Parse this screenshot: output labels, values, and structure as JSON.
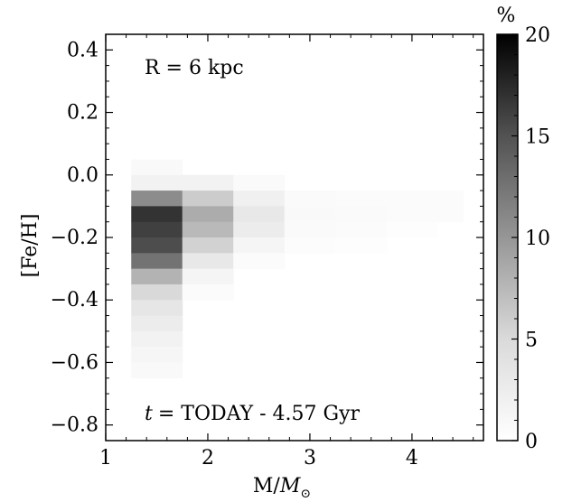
{
  "chart_data": {
    "type": "heatmap",
    "xlabel_main": "M/",
    "xlabel_sub": "⊙",
    "xlabel_sym": "M",
    "ylabel": "[Fe/H]",
    "xlim": [
      1,
      4.7
    ],
    "ylim": [
      -0.85,
      0.45
    ],
    "xticks": [
      1,
      2,
      3,
      4
    ],
    "yticks": [
      0.4,
      0.2,
      0.0,
      -0.2,
      -0.4,
      -0.6,
      -0.8
    ],
    "ytick_labels": [
      "0.4",
      "0.2",
      "0.0",
      "−0.2",
      "−0.4",
      "−0.6",
      "−0.8"
    ],
    "x_bin_edges": [
      1.25,
      1.75,
      2.25,
      2.75,
      3.25,
      3.75,
      4.25,
      4.75
    ],
    "cells": [
      {
        "x0": 1.25,
        "x1": 1.75,
        "y0": 0.0,
        "y1": 0.05,
        "value": 0.5
      },
      {
        "x0": 1.25,
        "x1": 1.75,
        "y0": -0.05,
        "y1": 0.0,
        "value": 1.0
      },
      {
        "x0": 1.25,
        "x1": 1.75,
        "y0": -0.1,
        "y1": -0.05,
        "value": 9.0
      },
      {
        "x0": 1.25,
        "x1": 1.75,
        "y0": -0.15,
        "y1": -0.1,
        "value": 16.0
      },
      {
        "x0": 1.25,
        "x1": 1.75,
        "y0": -0.2,
        "y1": -0.15,
        "value": 15.0
      },
      {
        "x0": 1.25,
        "x1": 1.75,
        "y0": -0.25,
        "y1": -0.2,
        "value": 14.0
      },
      {
        "x0": 1.25,
        "x1": 1.75,
        "y0": -0.3,
        "y1": -0.25,
        "value": 11.0
      },
      {
        "x0": 1.25,
        "x1": 1.75,
        "y0": -0.35,
        "y1": -0.3,
        "value": 6.0
      },
      {
        "x0": 1.25,
        "x1": 1.75,
        "y0": -0.4,
        "y1": -0.35,
        "value": 3.0
      },
      {
        "x0": 1.25,
        "x1": 1.75,
        "y0": -0.45,
        "y1": -0.4,
        "value": 2.0
      },
      {
        "x0": 1.25,
        "x1": 1.75,
        "y0": -0.5,
        "y1": -0.45,
        "value": 1.5
      },
      {
        "x0": 1.25,
        "x1": 1.75,
        "y0": -0.55,
        "y1": -0.5,
        "value": 1.0
      },
      {
        "x0": 1.25,
        "x1": 1.75,
        "y0": -0.6,
        "y1": -0.55,
        "value": 0.7
      },
      {
        "x0": 1.25,
        "x1": 1.75,
        "y0": -0.65,
        "y1": -0.6,
        "value": 0.5
      },
      {
        "x0": 1.75,
        "x1": 2.25,
        "y0": -0.05,
        "y1": 0.0,
        "value": 1.0
      },
      {
        "x0": 1.75,
        "x1": 2.25,
        "y0": -0.1,
        "y1": -0.05,
        "value": 4.0
      },
      {
        "x0": 1.75,
        "x1": 2.25,
        "y0": -0.15,
        "y1": -0.1,
        "value": 6.5
      },
      {
        "x0": 1.75,
        "x1": 2.25,
        "y0": -0.2,
        "y1": -0.15,
        "value": 5.5
      },
      {
        "x0": 1.75,
        "x1": 2.25,
        "y0": -0.25,
        "y1": -0.2,
        "value": 3.5
      },
      {
        "x0": 1.75,
        "x1": 2.25,
        "y0": -0.3,
        "y1": -0.25,
        "value": 1.8
      },
      {
        "x0": 1.75,
        "x1": 2.25,
        "y0": -0.35,
        "y1": -0.3,
        "value": 0.8
      },
      {
        "x0": 1.75,
        "x1": 2.25,
        "y0": -0.4,
        "y1": -0.35,
        "value": 0.3
      },
      {
        "x0": 2.25,
        "x1": 2.75,
        "y0": -0.05,
        "y1": 0.0,
        "value": 0.4
      },
      {
        "x0": 2.25,
        "x1": 2.75,
        "y0": -0.1,
        "y1": -0.05,
        "value": 1.2
      },
      {
        "x0": 2.25,
        "x1": 2.75,
        "y0": -0.15,
        "y1": -0.1,
        "value": 1.8
      },
      {
        "x0": 2.25,
        "x1": 2.75,
        "y0": -0.2,
        "y1": -0.15,
        "value": 1.5
      },
      {
        "x0": 2.25,
        "x1": 2.75,
        "y0": -0.25,
        "y1": -0.2,
        "value": 0.8
      },
      {
        "x0": 2.25,
        "x1": 2.75,
        "y0": -0.3,
        "y1": -0.25,
        "value": 0.3
      },
      {
        "x0": 2.75,
        "x1": 3.25,
        "y0": -0.1,
        "y1": -0.05,
        "value": 0.4
      },
      {
        "x0": 2.75,
        "x1": 3.25,
        "y0": -0.15,
        "y1": -0.1,
        "value": 0.5
      },
      {
        "x0": 2.75,
        "x1": 3.25,
        "y0": -0.2,
        "y1": -0.15,
        "value": 0.4
      },
      {
        "x0": 2.75,
        "x1": 3.25,
        "y0": -0.25,
        "y1": -0.2,
        "value": 0.2
      },
      {
        "x0": 3.25,
        "x1": 3.75,
        "y0": -0.1,
        "y1": -0.05,
        "value": 0.3
      },
      {
        "x0": 3.25,
        "x1": 3.75,
        "y0": -0.15,
        "y1": -0.1,
        "value": 0.4
      },
      {
        "x0": 3.25,
        "x1": 3.75,
        "y0": -0.2,
        "y1": -0.15,
        "value": 0.3
      },
      {
        "x0": 3.25,
        "x1": 3.75,
        "y0": -0.25,
        "y1": -0.2,
        "value": 0.15
      },
      {
        "x0": 3.75,
        "x1": 4.25,
        "y0": -0.1,
        "y1": -0.05,
        "value": 0.3
      },
      {
        "x0": 3.75,
        "x1": 4.25,
        "y0": -0.15,
        "y1": -0.1,
        "value": 0.35
      },
      {
        "x0": 3.75,
        "x1": 4.25,
        "y0": -0.2,
        "y1": -0.15,
        "value": 0.15
      },
      {
        "x0": 4.25,
        "x1": 4.5,
        "y0": -0.1,
        "y1": -0.05,
        "value": 0.3
      },
      {
        "x0": 4.25,
        "x1": 4.5,
        "y0": -0.15,
        "y1": -0.1,
        "value": 0.3
      }
    ],
    "colorbar": {
      "label": "%",
      "range": [
        0,
        20
      ],
      "ticks": [
        0,
        5,
        10,
        15,
        20
      ],
      "colormap": "Greys",
      "low_color": "#ffffff",
      "high_color": "#000000"
    },
    "annotations": {
      "radius": "R = 6 kpc",
      "time_var": "t",
      "time_rest": "= TODAY - 4.57 Gyr"
    },
    "grid": false,
    "ticks_direction": "in"
  }
}
